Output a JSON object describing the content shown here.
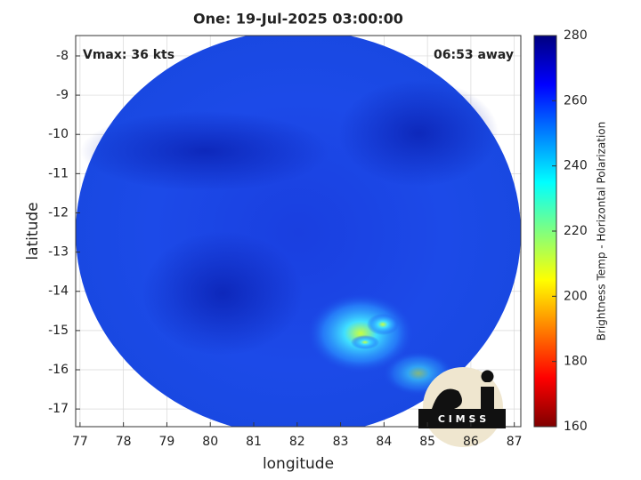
{
  "chart_data": {
    "type": "image",
    "title": "One: 19-Jul-2025 03:00:00",
    "annotations": [
      "Vmax: 36 kts",
      "06:53 away"
    ],
    "x_label": "longitude",
    "y_label": "latitude",
    "xlim": [
      76.9,
      87.15
    ],
    "ylim": [
      -17.45,
      -7.48
    ],
    "xticks": [
      77,
      78,
      79,
      80,
      81,
      82,
      83,
      84,
      85,
      86,
      87
    ],
    "yticks": [
      -17,
      -16,
      -15,
      -14,
      -13,
      -12,
      -11,
      -10,
      -9,
      -8
    ],
    "grid": true,
    "colorbar": {
      "label": "Brightness Temp - Horizontal Polarization",
      "lim": [
        160,
        280
      ],
      "ticks": [
        160,
        180,
        200,
        220,
        240,
        260,
        280
      ],
      "colormap": "jet"
    },
    "logo_text": "C I M S S"
  }
}
